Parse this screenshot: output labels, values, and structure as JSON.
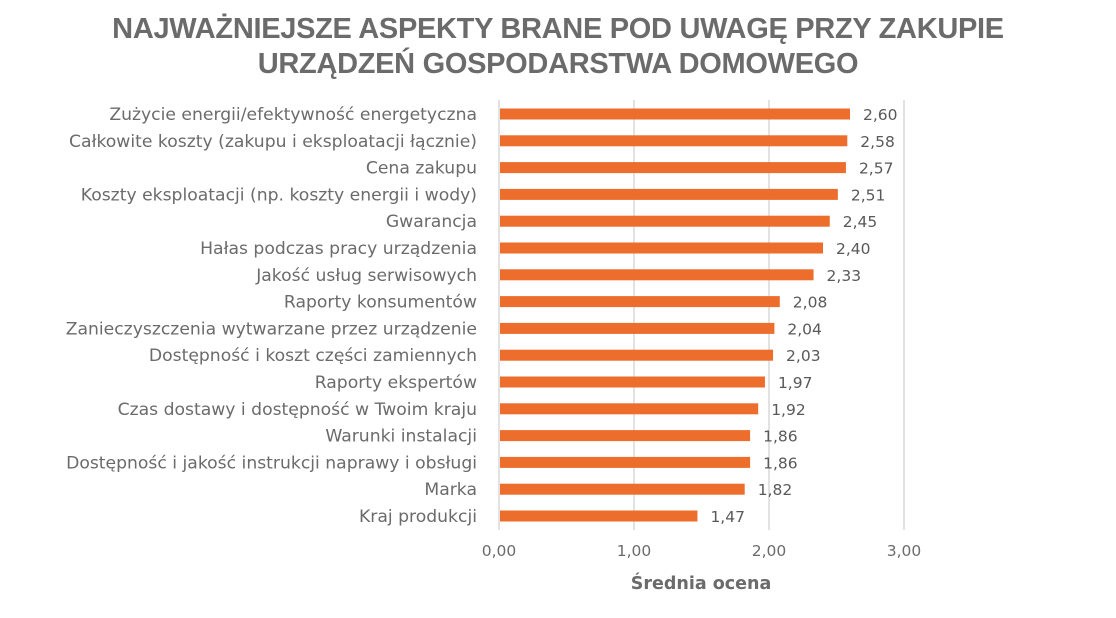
{
  "chart_data": {
    "type": "bar",
    "orientation": "horizontal",
    "title_lines": [
      "NAJWAŻNIEJSZE ASPEKTY BRANE POD UWAGĘ PRZY ZAKUPIE",
      "URZĄDZEŃ GOSPODARSTWA DOMOWEGO"
    ],
    "xlabel": "Średnia ocena",
    "ylabel": "",
    "xlim": [
      0,
      3
    ],
    "x_ticks": [
      0,
      1,
      2,
      3
    ],
    "x_tick_labels": [
      "0,00",
      "1,00",
      "2,00",
      "3,00"
    ],
    "grid": true,
    "legend": "none",
    "bar_color": "#ED6D2D",
    "categories": [
      "Zużycie energii/efektywność energetyczna",
      "Całkowite koszty (zakupu i eksploatacji łącznie)",
      "Cena zakupu",
      "Koszty eksploatacji (np. koszty energii i wody)",
      "Gwarancja",
      "Hałas podczas pracy urządzenia",
      "Jakość usług serwisowych",
      "Raporty konsumentów",
      "Zanieczyszczenia wytwarzane przez urządzenie",
      "Dostępność i koszt części zamiennych",
      "Raporty ekspertów",
      "Czas dostawy i dostępność w Twoim kraju",
      "Warunki instalacji",
      "Dostępność i jakość instrukcji naprawy i obsługi",
      "Marka",
      "Kraj produkcji"
    ],
    "values": [
      2.6,
      2.58,
      2.57,
      2.51,
      2.45,
      2.4,
      2.33,
      2.08,
      2.04,
      2.03,
      1.97,
      1.92,
      1.86,
      1.86,
      1.82,
      1.47
    ],
    "value_labels": [
      "2,60",
      "2,58",
      "2,57",
      "2,51",
      "2,45",
      "2,40",
      "2,33",
      "2,08",
      "2,04",
      "2,03",
      "1,97",
      "1,92",
      "1,86",
      "1,86",
      "1,82",
      "1,47"
    ]
  }
}
